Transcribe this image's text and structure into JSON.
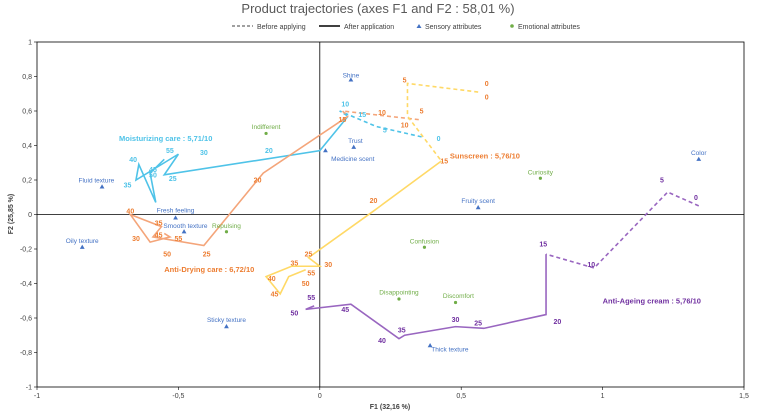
{
  "chart_data": {
    "type": "scatter",
    "title": "Product trajectories (axes F1 and F2 : 58,01 %)",
    "xlabel": "F1 (32,16 %)",
    "ylabel": "F2 (25,85 %)",
    "xlim": [
      -1,
      1.5
    ],
    "ylim": [
      -1,
      1
    ],
    "xticks": [
      -1,
      -0.5,
      0,
      0.5,
      1,
      1.5
    ],
    "xtick_labels": [
      "-1",
      "-0,5",
      "0",
      "0,5",
      "1",
      "1,5"
    ],
    "yticks": [
      -1,
      -0.8,
      -0.6,
      -0.4,
      -0.2,
      0,
      0.2,
      0.4,
      0.6,
      0.8,
      1
    ],
    "ytick_labels": [
      "-1",
      "-0,8",
      "-0,6",
      "-0,4",
      "-0,2",
      "0",
      "0,2",
      "0,4",
      "0,6",
      "0,8",
      "1"
    ],
    "legend": {
      "position": "top",
      "items": [
        {
          "label": "Before applying",
          "style": "dashed"
        },
        {
          "label": "After application",
          "style": "solid"
        },
        {
          "label": "Sensory attributes",
          "style": "triangle",
          "color": "#4472c4"
        },
        {
          "label": "Emotional attributes",
          "style": "dot",
          "color": "#70ad47"
        }
      ]
    },
    "sensory_attributes": [
      {
        "label": "Shine",
        "x": 0.11,
        "y": 0.78,
        "lx": 0.11,
        "ly": 0.81,
        "anchor": "middle"
      },
      {
        "label": "Trust",
        "x": 0.12,
        "y": 0.39,
        "lx": 0.1,
        "ly": 0.43,
        "anchor": "start"
      },
      {
        "label": "Medicine scent",
        "x": 0.02,
        "y": 0.37,
        "lx": 0.04,
        "ly": 0.325,
        "anchor": "start"
      },
      {
        "label": "Color",
        "x": 1.34,
        "y": 0.32,
        "lx": 1.34,
        "ly": 0.36,
        "anchor": "middle"
      },
      {
        "label": "Fluid texture",
        "x": -0.77,
        "y": 0.16,
        "lx": -0.79,
        "ly": 0.2,
        "anchor": "middle"
      },
      {
        "label": "Fruity scent",
        "x": 0.56,
        "y": 0.04,
        "lx": 0.56,
        "ly": 0.08,
        "anchor": "middle"
      },
      {
        "label": "Fresh feeling",
        "x": -0.51,
        "y": -0.02,
        "lx": -0.51,
        "ly": 0.025,
        "anchor": "middle"
      },
      {
        "label": "Smooth texture",
        "x": -0.48,
        "y": -0.1,
        "lx": -0.475,
        "ly": -0.065,
        "anchor": "middle"
      },
      {
        "label": "Oily texture",
        "x": -0.84,
        "y": -0.19,
        "lx": -0.84,
        "ly": -0.15,
        "anchor": "middle"
      },
      {
        "label": "Sticky texture",
        "x": -0.33,
        "y": -0.65,
        "lx": -0.33,
        "ly": -0.61,
        "anchor": "middle"
      },
      {
        "label": "Thick texture",
        "x": 0.39,
        "y": -0.76,
        "lx": 0.46,
        "ly": -0.78,
        "anchor": "middle"
      }
    ],
    "emotional_attributes": [
      {
        "label": "Indifferent",
        "x": -0.19,
        "y": 0.47,
        "lx": -0.19,
        "ly": 0.51,
        "anchor": "middle"
      },
      {
        "label": "Curiosity",
        "x": 0.78,
        "y": 0.21,
        "lx": 0.78,
        "ly": 0.245,
        "anchor": "middle"
      },
      {
        "label": "Repulsing",
        "x": -0.33,
        "y": -0.1,
        "lx": -0.33,
        "ly": -0.065,
        "anchor": "middle"
      },
      {
        "label": "Confusion",
        "x": 0.37,
        "y": -0.19,
        "lx": 0.37,
        "ly": -0.155,
        "anchor": "middle"
      },
      {
        "label": "Disappointing",
        "x": 0.28,
        "y": -0.49,
        "lx": 0.28,
        "ly": -0.45,
        "anchor": "middle"
      },
      {
        "label": "Discomfort",
        "x": 0.48,
        "y": -0.51,
        "lx": 0.49,
        "ly": -0.47,
        "anchor": "middle"
      }
    ],
    "series": [
      {
        "name": "Moisturizing care : 5,71/10",
        "color": "#4fc3e8",
        "label_x": -0.71,
        "label_y": 0.44,
        "before": [
          {
            "t": "0",
            "x": 0.36,
            "y": 0.45
          },
          {
            "t": "5",
            "x": 0.2,
            "y": 0.51
          },
          {
            "t": "10",
            "x": 0.07,
            "y": 0.6
          }
        ],
        "after": [
          {
            "t": "15",
            "x": 0.1,
            "y": 0.57
          },
          {
            "t": "20",
            "x": 0.0,
            "y": 0.37
          },
          {
            "t": "25",
            "x": -0.55,
            "y": 0.23
          },
          {
            "t": "30",
            "x": -0.5,
            "y": 0.35
          },
          {
            "t": "35",
            "x": -0.65,
            "y": 0.2
          },
          {
            "t": "40",
            "x": -0.64,
            "y": 0.29
          },
          {
            "t": "45",
            "x": -0.58,
            "y": 0.07
          },
          {
            "t": "50",
            "x": -0.6,
            "y": 0.24
          },
          {
            "t": "55",
            "x": -0.55,
            "y": 0.32
          }
        ],
        "labels": [
          {
            "t": "0",
            "x": 0.42,
            "y": 0.44
          },
          {
            "t": "5",
            "x": 0.23,
            "y": 0.49
          },
          {
            "t": "10",
            "x": 0.09,
            "y": 0.64
          },
          {
            "t": "15",
            "x": 0.15,
            "y": 0.58
          },
          {
            "t": "20",
            "x": -0.18,
            "y": 0.37
          },
          {
            "t": "25",
            "x": -0.52,
            "y": 0.21
          },
          {
            "t": "30",
            "x": -0.41,
            "y": 0.36
          },
          {
            "t": "35",
            "x": -0.68,
            "y": 0.17
          },
          {
            "t": "40",
            "x": -0.66,
            "y": 0.32
          },
          {
            "t": "45",
            "x": -0.59,
            "y": 0.26
          },
          {
            "t": "50",
            "x": -0.59,
            "y": 0.23
          },
          {
            "t": "55",
            "x": -0.53,
            "y": 0.37
          }
        ]
      },
      {
        "name": "Anti-Drying care : 6,72/10",
        "color": "#f4a57a",
        "label_color": "#ed7d31",
        "label_x": -0.55,
        "label_y": -0.32,
        "before": [
          {
            "t": "0",
            "x": 0.35,
            "y": 0.55
          },
          {
            "t": "5",
            "x": 0.24,
            "y": 0.57
          },
          {
            "t": "10",
            "x": 0.08,
            "y": 0.6
          }
        ],
        "after": [
          {
            "t": "15",
            "x": 0.1,
            "y": 0.57
          },
          {
            "t": "20",
            "x": -0.2,
            "y": 0.24
          },
          {
            "t": "25",
            "x": -0.41,
            "y": -0.18
          },
          {
            "t": "30",
            "x": -0.59,
            "y": -0.13
          },
          {
            "t": "35",
            "x": -0.56,
            "y": -0.07
          },
          {
            "t": "40",
            "x": -0.67,
            "y": -0.0
          },
          {
            "t": "45",
            "x": -0.6,
            "y": -0.16
          },
          {
            "t": "50",
            "x": -0.53,
            "y": -0.13
          },
          {
            "t": "55",
            "x": -0.55,
            "y": -0.11
          }
        ],
        "labels": [
          {
            "t": "5",
            "x": 0.36,
            "y": 0.6
          },
          {
            "t": "10",
            "x": 0.22,
            "y": 0.59
          },
          {
            "t": "15",
            "x": 0.08,
            "y": 0.55
          },
          {
            "t": "20",
            "x": -0.22,
            "y": 0.2
          },
          {
            "t": "25",
            "x": -0.4,
            "y": -0.23
          },
          {
            "t": "30",
            "x": -0.65,
            "y": -0.14
          },
          {
            "t": "35",
            "x": -0.57,
            "y": -0.05
          },
          {
            "t": "40",
            "x": -0.67,
            "y": 0.02
          },
          {
            "t": "45",
            "x": -0.57,
            "y": -0.12
          },
          {
            "t": "50",
            "x": -0.54,
            "y": -0.23
          },
          {
            "t": "55",
            "x": -0.5,
            "y": -0.14
          }
        ]
      },
      {
        "name": "Sunscreen : 5,76/10",
        "color": "#ffd966",
        "label_color": "#ed7d31",
        "label_x": 0.46,
        "label_y": 0.34,
        "before": [
          {
            "t": "0",
            "x": 0.56,
            "y": 0.71
          },
          {
            "t": "5",
            "x": 0.31,
            "y": 0.76
          },
          {
            "t": "10",
            "x": 0.31,
            "y": 0.57
          }
        ],
        "after": [
          {
            "t": "15",
            "x": 0.43,
            "y": 0.31
          },
          {
            "t": "20",
            "x": 0.19,
            "y": 0.02
          },
          {
            "t": "25",
            "x": -0.04,
            "y": -0.25
          },
          {
            "t": "30",
            "x": 0.0,
            "y": -0.3
          },
          {
            "t": "35",
            "x": -0.1,
            "y": -0.3
          },
          {
            "t": "40",
            "x": -0.19,
            "y": -0.36
          },
          {
            "t": "45",
            "x": -0.14,
            "y": -0.46
          },
          {
            "t": "50",
            "x": -0.11,
            "y": -0.36
          },
          {
            "t": "55",
            "x": -0.05,
            "y": -0.32
          }
        ],
        "labels": [
          {
            "t": "0",
            "x": 0.59,
            "y": 0.76
          },
          {
            "t": "0",
            "x": 0.59,
            "y": 0.68
          },
          {
            "t": "5",
            "x": 0.3,
            "y": 0.78
          },
          {
            "t": "10",
            "x": 0.3,
            "y": 0.52
          },
          {
            "t": "15",
            "x": 0.44,
            "y": 0.31
          },
          {
            "t": "20",
            "x": 0.19,
            "y": 0.08
          },
          {
            "t": "25",
            "x": -0.04,
            "y": -0.23
          },
          {
            "t": "30",
            "x": 0.03,
            "y": -0.29
          },
          {
            "t": "35",
            "x": -0.09,
            "y": -0.28
          },
          {
            "t": "40",
            "x": -0.17,
            "y": -0.37
          },
          {
            "t": "45",
            "x": -0.16,
            "y": -0.46
          },
          {
            "t": "50",
            "x": -0.05,
            "y": -0.4
          },
          {
            "t": "55",
            "x": -0.03,
            "y": -0.34
          }
        ]
      },
      {
        "name": "Anti-Ageing cream : 5,76/10",
        "color": "#9966c0",
        "label_color": "#7030a0",
        "label_x": 1.0,
        "label_y": -0.5,
        "before": [
          {
            "t": "0",
            "x": 1.34,
            "y": 0.05
          },
          {
            "t": "5",
            "x": 1.23,
            "y": 0.13
          },
          {
            "t": "10",
            "x": 0.97,
            "y": -0.31
          }
        ],
        "after": [
          {
            "t": "15",
            "x": 0.8,
            "y": -0.23
          },
          {
            "t": "20",
            "x": 0.8,
            "y": -0.58
          },
          {
            "t": "25",
            "x": 0.58,
            "y": -0.66
          },
          {
            "t": "30",
            "x": 0.48,
            "y": -0.65
          },
          {
            "t": "35",
            "x": 0.3,
            "y": -0.7
          },
          {
            "t": "40",
            "x": 0.28,
            "y": -0.72
          },
          {
            "t": "45",
            "x": 0.11,
            "y": -0.52
          },
          {
            "t": "50",
            "x": -0.05,
            "y": -0.55
          },
          {
            "t": "55",
            "x": -0.02,
            "y": -0.53
          }
        ],
        "labels": [
          {
            "t": "0",
            "x": 1.33,
            "y": 0.1
          },
          {
            "t": "5",
            "x": 1.21,
            "y": 0.2
          },
          {
            "t": "10",
            "x": 0.96,
            "y": -0.29
          },
          {
            "t": "15",
            "x": 0.79,
            "y": -0.17
          },
          {
            "t": "20",
            "x": 0.84,
            "y": -0.62
          },
          {
            "t": "25",
            "x": 0.56,
            "y": -0.63
          },
          {
            "t": "30",
            "x": 0.48,
            "y": -0.61
          },
          {
            "t": "35",
            "x": 0.29,
            "y": -0.67
          },
          {
            "t": "40",
            "x": 0.22,
            "y": -0.73
          },
          {
            "t": "45",
            "x": 0.09,
            "y": -0.55
          },
          {
            "t": "50",
            "x": -0.09,
            "y": -0.57
          },
          {
            "t": "55",
            "x": -0.03,
            "y": -0.48
          }
        ]
      }
    ]
  }
}
